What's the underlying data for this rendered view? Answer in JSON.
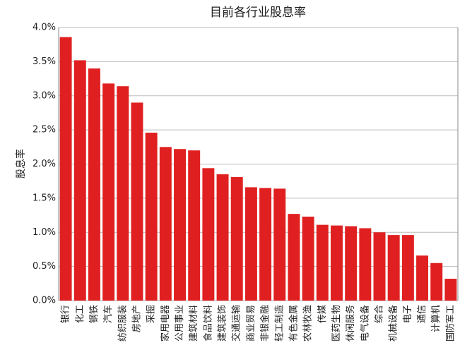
{
  "chart_data": {
    "type": "bar",
    "title": "目前各行业股息率",
    "y_label": "股息率",
    "categories": [
      "银行",
      "化工",
      "钢铁",
      "汽车",
      "纺织服装",
      "房地产",
      "采掘",
      "家用电器",
      "公用事业",
      "建筑材料",
      "食品饮料",
      "建筑装饰",
      "交通运输",
      "商业贸易",
      "非银金融",
      "轻工制造",
      "有色金属",
      "农林牧渔",
      "传媒",
      "医药生物",
      "休闲服务",
      "电气设备",
      "综合",
      "机械设备",
      "电子",
      "通信",
      "计算机",
      "国防军工"
    ],
    "values": [
      3.86,
      3.52,
      3.4,
      3.18,
      3.14,
      2.9,
      2.46,
      2.25,
      2.22,
      2.2,
      1.94,
      1.85,
      1.81,
      1.66,
      1.65,
      1.64,
      1.27,
      1.23,
      1.11,
      1.1,
      1.09,
      1.06,
      1.0,
      0.96,
      0.96,
      0.66,
      0.55,
      0.32
    ],
    "color": "#e02020",
    "ylim": [
      0,
      4
    ],
    "yticks": [
      {
        "value": 0,
        "label": "0.0%"
      },
      {
        "value": 0.5,
        "label": "0.5%"
      },
      {
        "value": 1,
        "label": "1.0%"
      },
      {
        "value": 1.5,
        "label": "1.5%"
      },
      {
        "value": 2,
        "label": "2.0%"
      },
      {
        "value": 2.5,
        "label": "2.5%"
      },
      {
        "value": 3,
        "label": "3.0%"
      },
      {
        "value": 3.5,
        "label": "3.5%"
      },
      {
        "value": 4,
        "label": "4.0%"
      }
    ],
    "grid": true
  }
}
